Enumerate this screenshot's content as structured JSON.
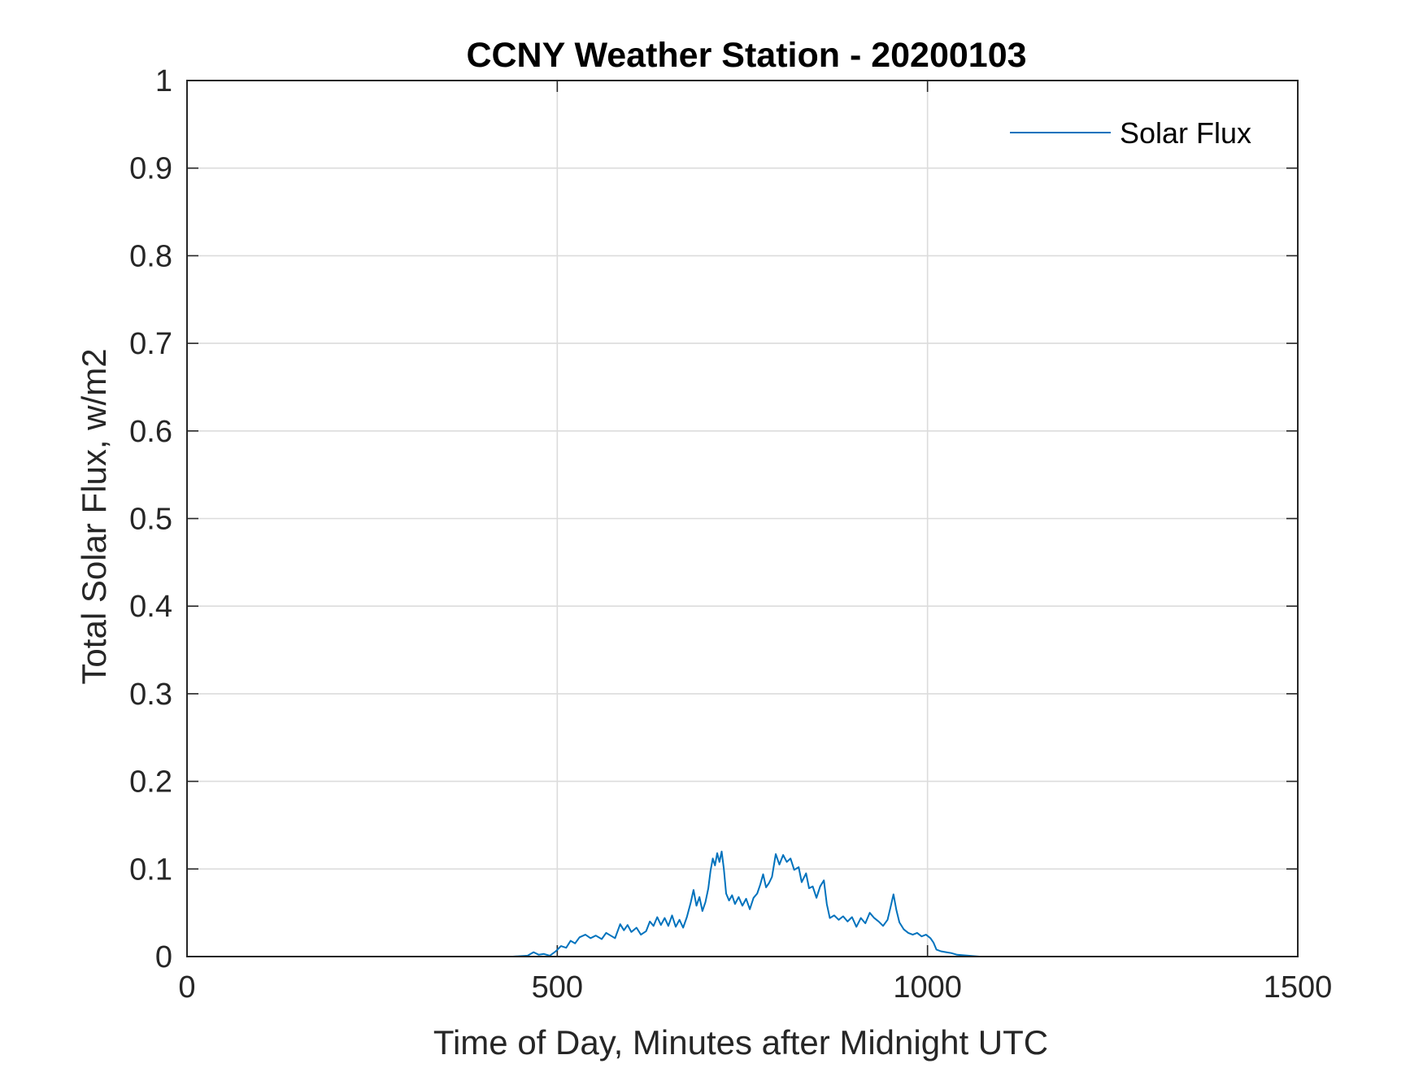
{
  "chart_data": {
    "type": "line",
    "title": "CCNY Weather Station - 20200103",
    "xlabel": "Time of Day, Minutes after Midnight UTC",
    "ylabel": "Total Solar Flux, w/m2",
    "xlim": [
      0,
      1500
    ],
    "ylim": [
      0,
      1
    ],
    "xticks": [
      0,
      500,
      1000,
      1500
    ],
    "xtick_labels": [
      "0",
      "500",
      "1000",
      "1500"
    ],
    "yticks": [
      0,
      0.1,
      0.2,
      0.3,
      0.4,
      0.5,
      0.6,
      0.7,
      0.8,
      0.9,
      1
    ],
    "ytick_labels": [
      "0",
      "0.1",
      "0.2",
      "0.3",
      "0.4",
      "0.5",
      "0.6",
      "0.7",
      "0.8",
      "0.9",
      "1"
    ],
    "grid": true,
    "legend_position": "top-right",
    "series": [
      {
        "name": "Solar Flux",
        "color": "#0072BD",
        "points": [
          [
            0,
            0
          ],
          [
            440,
            0
          ],
          [
            460,
            0.001
          ],
          [
            468,
            0.005
          ],
          [
            475,
            0.002
          ],
          [
            482,
            0.003
          ],
          [
            490,
            0.001
          ],
          [
            498,
            0.006
          ],
          [
            505,
            0.012
          ],
          [
            512,
            0.01
          ],
          [
            518,
            0.018
          ],
          [
            524,
            0.015
          ],
          [
            530,
            0.022
          ],
          [
            538,
            0.025
          ],
          [
            545,
            0.021
          ],
          [
            552,
            0.024
          ],
          [
            560,
            0.02
          ],
          [
            566,
            0.027
          ],
          [
            572,
            0.024
          ],
          [
            578,
            0.021
          ],
          [
            585,
            0.037
          ],
          [
            590,
            0.03
          ],
          [
            595,
            0.036
          ],
          [
            600,
            0.028
          ],
          [
            607,
            0.033
          ],
          [
            613,
            0.025
          ],
          [
            620,
            0.029
          ],
          [
            625,
            0.04
          ],
          [
            630,
            0.035
          ],
          [
            635,
            0.045
          ],
          [
            640,
            0.036
          ],
          [
            645,
            0.044
          ],
          [
            650,
            0.035
          ],
          [
            655,
            0.047
          ],
          [
            660,
            0.034
          ],
          [
            665,
            0.042
          ],
          [
            670,
            0.033
          ],
          [
            675,
            0.045
          ],
          [
            680,
            0.061
          ],
          [
            684,
            0.076
          ],
          [
            688,
            0.058
          ],
          [
            692,
            0.068
          ],
          [
            696,
            0.052
          ],
          [
            700,
            0.062
          ],
          [
            704,
            0.078
          ],
          [
            707,
            0.098
          ],
          [
            710,
            0.112
          ],
          [
            713,
            0.104
          ],
          [
            716,
            0.118
          ],
          [
            719,
            0.108
          ],
          [
            722,
            0.12
          ],
          [
            725,
            0.1
          ],
          [
            728,
            0.072
          ],
          [
            732,
            0.064
          ],
          [
            736,
            0.07
          ],
          [
            740,
            0.06
          ],
          [
            745,
            0.068
          ],
          [
            750,
            0.058
          ],
          [
            755,
            0.066
          ],
          [
            760,
            0.054
          ],
          [
            765,
            0.067
          ],
          [
            770,
            0.072
          ],
          [
            774,
            0.082
          ],
          [
            778,
            0.094
          ],
          [
            782,
            0.079
          ],
          [
            786,
            0.084
          ],
          [
            790,
            0.091
          ],
          [
            795,
            0.117
          ],
          [
            800,
            0.105
          ],
          [
            805,
            0.116
          ],
          [
            810,
            0.108
          ],
          [
            815,
            0.112
          ],
          [
            820,
            0.099
          ],
          [
            826,
            0.102
          ],
          [
            830,
            0.085
          ],
          [
            836,
            0.095
          ],
          [
            840,
            0.078
          ],
          [
            845,
            0.08
          ],
          [
            850,
            0.067
          ],
          [
            855,
            0.08
          ],
          [
            860,
            0.087
          ],
          [
            864,
            0.06
          ],
          [
            868,
            0.044
          ],
          [
            874,
            0.047
          ],
          [
            880,
            0.042
          ],
          [
            886,
            0.046
          ],
          [
            892,
            0.04
          ],
          [
            898,
            0.045
          ],
          [
            904,
            0.034
          ],
          [
            910,
            0.044
          ],
          [
            916,
            0.038
          ],
          [
            922,
            0.05
          ],
          [
            928,
            0.044
          ],
          [
            934,
            0.04
          ],
          [
            940,
            0.035
          ],
          [
            946,
            0.042
          ],
          [
            950,
            0.056
          ],
          [
            954,
            0.071
          ],
          [
            958,
            0.053
          ],
          [
            962,
            0.039
          ],
          [
            968,
            0.031
          ],
          [
            974,
            0.027
          ],
          [
            980,
            0.025
          ],
          [
            986,
            0.027
          ],
          [
            992,
            0.023
          ],
          [
            998,
            0.025
          ],
          [
            1004,
            0.021
          ],
          [
            1008,
            0.016
          ],
          [
            1012,
            0.008
          ],
          [
            1018,
            0.006
          ],
          [
            1025,
            0.005
          ],
          [
            1032,
            0.004
          ],
          [
            1040,
            0.002
          ],
          [
            1055,
            0.001
          ],
          [
            1070,
            0
          ],
          [
            1440,
            0
          ]
        ]
      }
    ]
  }
}
